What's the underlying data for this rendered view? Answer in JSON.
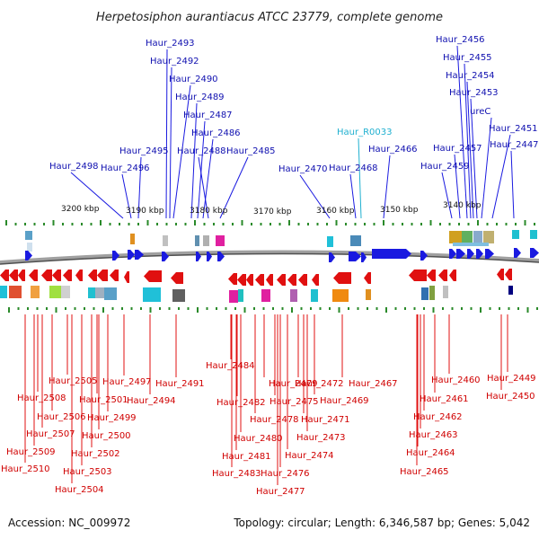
{
  "title": "Herpetosiphon aurantiacus ATCC 23779, complete genome",
  "footer": {
    "accession": "Accession: NC_009972",
    "summary": "Topology: circular; Length: 6,346,587 bp; Genes: 5,042"
  },
  "scale_labels": [
    "3200 kbp",
    "3190 kbp",
    "3180 kbp",
    "3170 kbp",
    "3160 kbp",
    "3150 kbp",
    "3140 kbp"
  ],
  "top_labels": [
    "Haur_2493",
    "Haur_2492",
    "Haur_2490",
    "Haur_2489",
    "Haur_2487",
    "Haur_2486",
    "Haur_2488",
    "Haur_2485",
    "Haur_2495",
    "Haur_2496",
    "Haur_2498",
    "Haur_2470",
    "Haur_2468",
    "Haur_R0033",
    "Haur_2466",
    "Haur_2456",
    "Haur_2455",
    "Haur_2454",
    "Haur_2453",
    "ureC",
    "Haur_2451",
    "Haur_2457",
    "Haur_2447",
    "Haur_2459"
  ],
  "bottom_labels": [
    "Haur_2505",
    "Haur_2508",
    "Haur_2506",
    "Haur_2507",
    "Haur_2509",
    "Haur_2510",
    "Haur_2497",
    "Haur_2501",
    "Haur_2499",
    "Haur_2500",
    "Haur_2502",
    "Haur_2503",
    "Haur_2504",
    "Haur_2494",
    "Haur_2491",
    "Haur_2484",
    "Haur_2482",
    "Haur_2479",
    "Haur_2478",
    "Haur_2480",
    "Haur_2481",
    "Haur_2483",
    "Haur_2475",
    "Haur_2472",
    "Haur_2469",
    "Haur_2471",
    "Haur_2473",
    "Haur_2474",
    "Haur_2476",
    "Haur_2477",
    "Haur_2467",
    "Haur_2460",
    "Haur_2461",
    "Haur_2462",
    "Haur_2463",
    "Haur_2464",
    "Haur_2465",
    "Haur_2449",
    "Haur_2450"
  ],
  "colors": {
    "forward_gene": "#1a1ae0",
    "reverse_gene": "#e01010",
    "rna_label": "#20b0d0",
    "tick_green": "#2a8a2a",
    "backbone": "#808080"
  }
}
